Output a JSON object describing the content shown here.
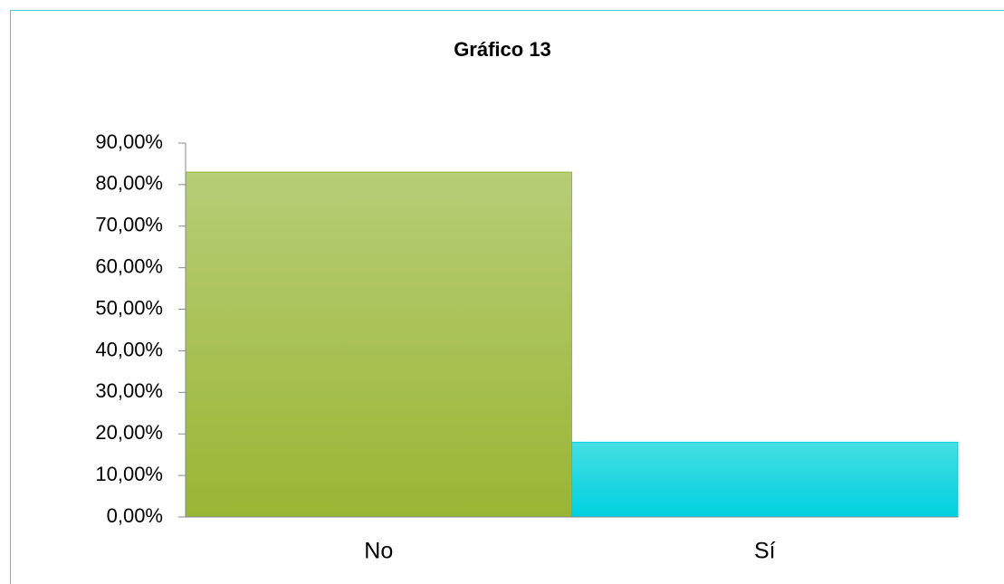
{
  "chart_data": {
    "type": "bar",
    "title": "Gráfico 13",
    "categories": [
      "No",
      "Sí"
    ],
    "values": [
      83,
      18
    ],
    "colors": [
      [
        "#b7cd76",
        "#9ab533"
      ],
      [
        "#45dfe3",
        "#00d0df"
      ]
    ],
    "ylim": [
      0,
      90
    ],
    "yticks": [
      {
        "value": 0,
        "label": "0,00%"
      },
      {
        "value": 10,
        "label": "10,00%"
      },
      {
        "value": 20,
        "label": "20,00%"
      },
      {
        "value": 30,
        "label": "30,00%"
      },
      {
        "value": 40,
        "label": "40,00%"
      },
      {
        "value": 50,
        "label": "50,00%"
      },
      {
        "value": 60,
        "label": "60,00%"
      },
      {
        "value": 70,
        "label": "70,00%"
      },
      {
        "value": 80,
        "label": "80,00%"
      },
      {
        "value": 90,
        "label": "90,00%"
      }
    ],
    "grid": false
  }
}
